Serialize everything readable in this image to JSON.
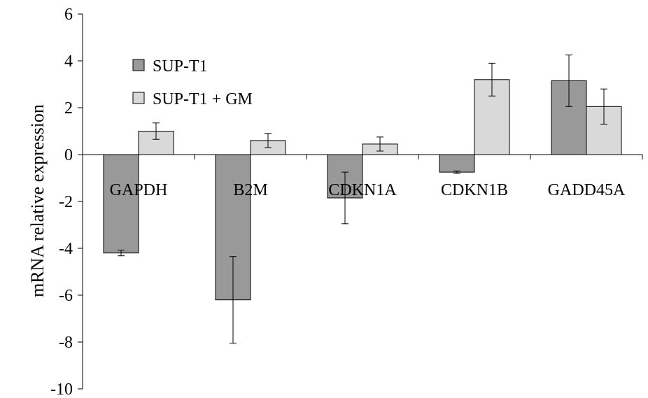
{
  "chart_data": {
    "type": "bar",
    "title": "",
    "xlabel": "",
    "ylabel": "mRNA relative expression",
    "ylim": [
      -10,
      6
    ],
    "yticks": [
      6,
      4,
      2,
      0,
      -2,
      -4,
      -6,
      -8,
      -10
    ],
    "grid": false,
    "legend_position": "top-left",
    "categories": [
      "GAPDH",
      "B2M",
      "CDKN1A",
      "CDKN1B",
      "GADD45A"
    ],
    "series": [
      {
        "name": "SUP-T1",
        "color": "#999999",
        "values": [
          -4.2,
          -6.2,
          -1.85,
          -0.75,
          3.15
        ],
        "errors": [
          0.12,
          1.85,
          1.1,
          0.05,
          1.1
        ]
      },
      {
        "name": "SUP-T1 + GM",
        "color": "#d9d9d9",
        "values": [
          1.0,
          0.6,
          0.45,
          3.2,
          2.05
        ],
        "errors": [
          0.35,
          0.3,
          0.3,
          0.7,
          0.75
        ]
      }
    ]
  }
}
